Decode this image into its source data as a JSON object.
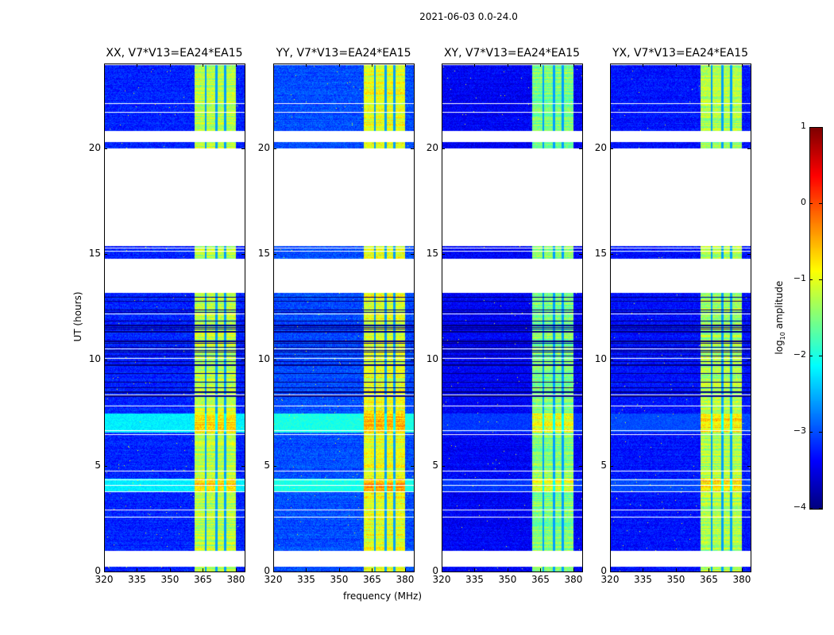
{
  "chart_data": {
    "type": "heatmap",
    "title": "2021-06-03 0.0-24.0",
    "xlabel": "frequency (MHz)",
    "ylabel": "UT (hours)",
    "xlim": [
      320,
      384
    ],
    "ylim": [
      0,
      24
    ],
    "xticks": [
      "320",
      "335",
      "350",
      "365",
      "380"
    ],
    "xtick_values": [
      320,
      335,
      350,
      365,
      380
    ],
    "yticks": [
      "0",
      "5",
      "10",
      "15",
      "20"
    ],
    "ytick_values": [
      0,
      5,
      10,
      15,
      20
    ],
    "panels": [
      {
        "title": "XX, V7*V13=EA24*EA15",
        "background_level": -3.2,
        "band_level": -1.2,
        "bright_epochs_level": -2.2
      },
      {
        "title": "YY, V7*V13=EA24*EA15",
        "background_level": -3.0,
        "band_level": -1.0,
        "bright_epochs_level": -2.0
      },
      {
        "title": "XY, V7*V13=EA24*EA15",
        "background_level": -3.4,
        "band_level": -1.5,
        "bright_epochs_level": -3.1
      },
      {
        "title": "YX, V7*V13=EA24*EA15",
        "background_level": -3.3,
        "band_level": -1.3,
        "bright_epochs_level": -3.0
      }
    ],
    "bright_band_mhz": [
      361,
      380
    ],
    "band_gaps_mhz": [
      366,
      371,
      375
    ],
    "bright_epochs_hours": [
      [
        3.8,
        4.4
      ],
      [
        6.6,
        7.5
      ]
    ],
    "dark_epochs_hours": [
      [
        7.7,
        13.2
      ]
    ],
    "flagged_hours": [
      [
        0.25,
        1.0
      ],
      [
        13.2,
        14.8
      ],
      [
        15.4,
        20.0
      ],
      [
        20.3,
        20.85
      ]
    ],
    "colorbar": {
      "label": "log10 amplitude",
      "label_main": "log",
      "label_sub": "10",
      "label_rest": " amplitude",
      "range": [
        -4,
        1
      ],
      "ticks": [
        "1",
        "0",
        "−1",
        "−2",
        "−3",
        "−4"
      ],
      "tick_values": [
        1,
        0,
        -1,
        -2,
        -3,
        -4
      ],
      "colormap": "jet"
    }
  }
}
